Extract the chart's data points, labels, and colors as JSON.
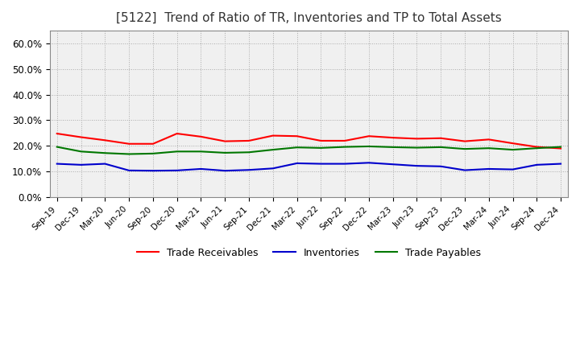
{
  "title": "[5122]  Trend of Ratio of TR, Inventories and TP to Total Assets",
  "title_fontsize": 11,
  "background_color": "#ffffff",
  "plot_bg_color": "#f0f0f0",
  "grid_color": "#aaaaaa",
  "x_labels": [
    "Sep-19",
    "Dec-19",
    "Mar-20",
    "Jun-20",
    "Sep-20",
    "Dec-20",
    "Mar-21",
    "Jun-21",
    "Sep-21",
    "Dec-21",
    "Mar-22",
    "Jun-22",
    "Sep-22",
    "Dec-22",
    "Mar-23",
    "Jun-23",
    "Sep-23",
    "Dec-23",
    "Mar-24",
    "Jun-24",
    "Sep-24",
    "Dec-24"
  ],
  "trade_receivables": [
    0.248,
    0.234,
    0.222,
    0.208,
    0.208,
    0.248,
    0.236,
    0.218,
    0.22,
    0.24,
    0.238,
    0.22,
    0.22,
    0.238,
    0.232,
    0.228,
    0.23,
    0.218,
    0.225,
    0.21,
    0.196,
    0.19
  ],
  "inventories": [
    0.13,
    0.126,
    0.13,
    0.104,
    0.103,
    0.104,
    0.11,
    0.103,
    0.106,
    0.112,
    0.132,
    0.13,
    0.13,
    0.134,
    0.128,
    0.122,
    0.12,
    0.105,
    0.11,
    0.108,
    0.126,
    0.13
  ],
  "trade_payables": [
    0.196,
    0.178,
    0.172,
    0.168,
    0.17,
    0.178,
    0.178,
    0.173,
    0.175,
    0.185,
    0.194,
    0.192,
    0.196,
    0.198,
    0.195,
    0.193,
    0.195,
    0.188,
    0.191,
    0.185,
    0.191,
    0.196
  ],
  "ylim": [
    0.0,
    0.65
  ],
  "yticks": [
    0.0,
    0.1,
    0.2,
    0.3,
    0.4,
    0.5,
    0.6
  ],
  "ytick_labels": [
    "0.0%",
    "10.0%",
    "20.0%",
    "30.0%",
    "40.0%",
    "50.0%",
    "60.0%"
  ],
  "line_colors": {
    "trade_receivables": "#ff0000",
    "inventories": "#0000cc",
    "trade_payables": "#007700"
  },
  "legend_labels": [
    "Trade Receivables",
    "Inventories",
    "Trade Payables"
  ],
  "linewidth": 1.5
}
